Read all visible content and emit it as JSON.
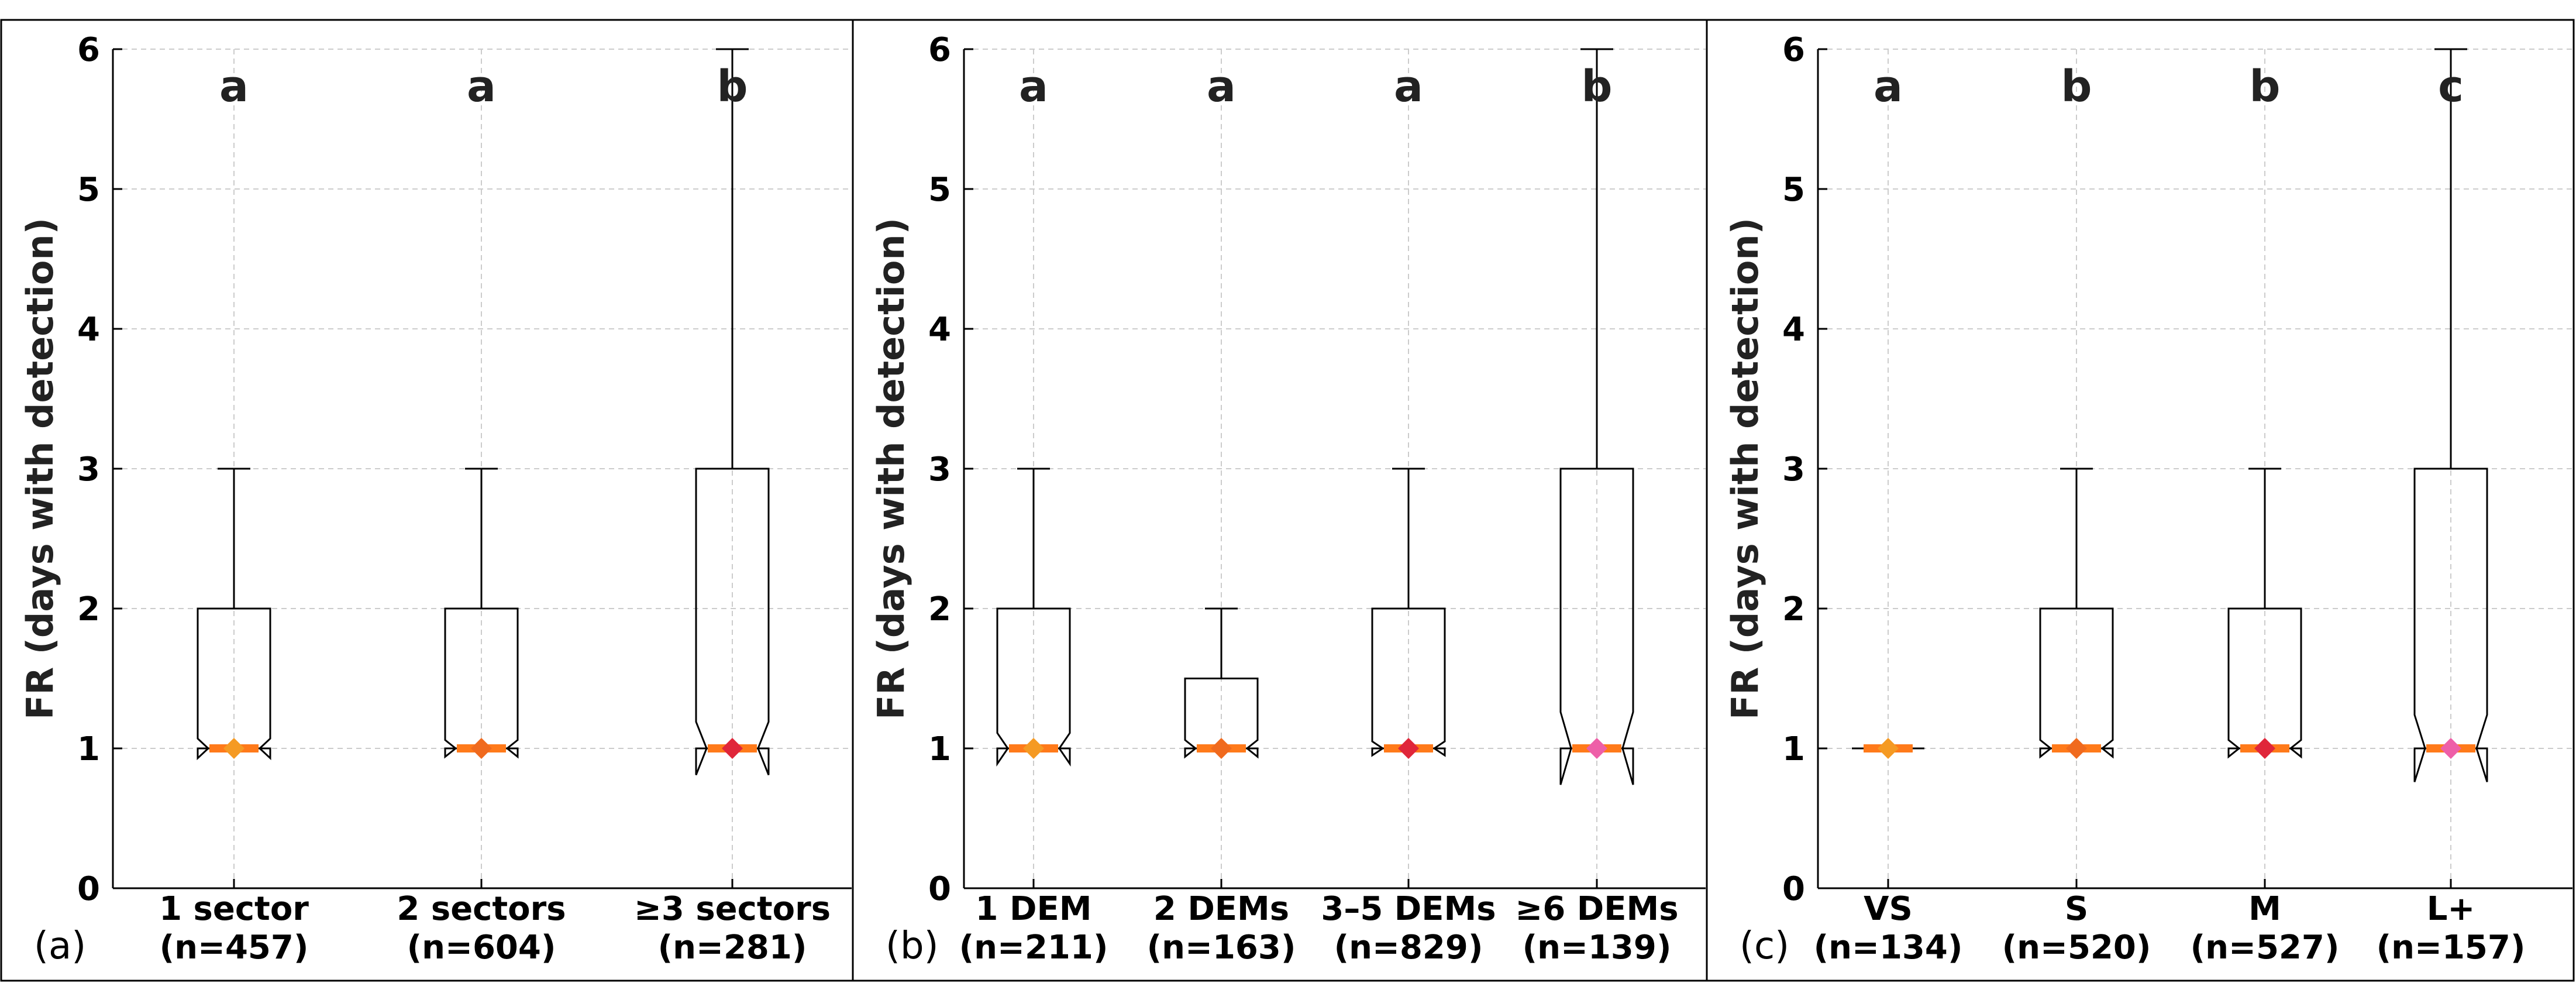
{
  "chart_data": [
    {
      "type": "boxplot",
      "panel_label": "(a)",
      "ylabel": "FR (days with detection)",
      "ylim": [
        0,
        6
      ],
      "yticks": [
        "0",
        "1",
        "2",
        "3",
        "4",
        "5",
        "6"
      ],
      "grid": true,
      "categories": [
        {
          "label": "1 sector",
          "n": "(n=457)",
          "q1": 1,
          "median": 1,
          "q3": 2,
          "whisker_low": 1,
          "whisker_high": 3,
          "notch_low": 0.93,
          "notch_high": 1.07,
          "mean": 1.0,
          "group": "a",
          "marker_color": "#f59a23"
        },
        {
          "label": "2 sectors",
          "n": "(n=604)",
          "q1": 1,
          "median": 1,
          "q3": 2,
          "whisker_low": 1,
          "whisker_high": 3,
          "notch_low": 0.94,
          "notch_high": 1.06,
          "mean": 1.0,
          "group": "a",
          "marker_color": "#f06a1e"
        },
        {
          "label": "≥3 sectors",
          "n": "(n=281)",
          "q1": 1,
          "median": 1,
          "q3": 3,
          "whisker_low": 1,
          "whisker_high": 6,
          "notch_low": 0.81,
          "notch_high": 1.19,
          "mean": 1.0,
          "group": "b",
          "marker_color": "#e0263a"
        }
      ]
    },
    {
      "type": "boxplot",
      "panel_label": "(b)",
      "ylabel": "FR (days with detection)",
      "ylim": [
        0,
        6
      ],
      "yticks": [
        "0",
        "1",
        "2",
        "3",
        "4",
        "5",
        "6"
      ],
      "grid": true,
      "categories": [
        {
          "label": "1 DEM",
          "n": "(n=211)",
          "q1": 1,
          "median": 1,
          "q3": 2,
          "whisker_low": 1,
          "whisker_high": 3,
          "notch_low": 0.89,
          "notch_high": 1.11,
          "mean": 1.0,
          "group": "a",
          "marker_color": "#f59a23"
        },
        {
          "label": "2 DEMs",
          "n": "(n=163)",
          "q1": 1,
          "median": 1,
          "q3": 1.5,
          "whisker_low": 1,
          "whisker_high": 2,
          "notch_low": 0.94,
          "notch_high": 1.06,
          "mean": 1.0,
          "group": "a",
          "marker_color": "#f06a1e"
        },
        {
          "label": "3–5 DEMs",
          "n": "(n=829)",
          "q1": 1,
          "median": 1,
          "q3": 2,
          "whisker_low": 1,
          "whisker_high": 3,
          "notch_low": 0.95,
          "notch_high": 1.05,
          "mean": 1.0,
          "group": "a",
          "marker_color": "#e0263a"
        },
        {
          "label": "≥6 DEMs",
          "n": "(n=139)",
          "q1": 1,
          "median": 1,
          "q3": 3,
          "whisker_low": 1,
          "whisker_high": 6,
          "notch_low": 0.74,
          "notch_high": 1.26,
          "mean": 1.0,
          "group": "b",
          "marker_color": "#ee5fa8"
        }
      ]
    },
    {
      "type": "boxplot",
      "panel_label": "(c)",
      "ylabel": "FR (days with detection)",
      "ylim": [
        0,
        6
      ],
      "yticks": [
        "0",
        "1",
        "2",
        "3",
        "4",
        "5",
        "6"
      ],
      "grid": true,
      "categories": [
        {
          "label": "VS",
          "n": "(n=134)",
          "q1": 1,
          "median": 1,
          "q3": 1,
          "whisker_low": 1,
          "whisker_high": 1,
          "notch_low": 1,
          "notch_high": 1,
          "mean": 1.0,
          "group": "a",
          "marker_color": "#f59a23"
        },
        {
          "label": "S",
          "n": "(n=520)",
          "q1": 1,
          "median": 1,
          "q3": 2,
          "whisker_low": 1,
          "whisker_high": 3,
          "notch_low": 0.94,
          "notch_high": 1.06,
          "mean": 1.0,
          "group": "b",
          "marker_color": "#f06a1e"
        },
        {
          "label": "M",
          "n": "(n=527)",
          "q1": 1,
          "median": 1,
          "q3": 2,
          "whisker_low": 1,
          "whisker_high": 3,
          "notch_low": 0.94,
          "notch_high": 1.06,
          "mean": 1.0,
          "group": "b",
          "marker_color": "#e0263a"
        },
        {
          "label": "L+",
          "n": "(n=157)",
          "q1": 1,
          "median": 1,
          "q3": 3,
          "whisker_low": 1,
          "whisker_high": 6,
          "notch_low": 0.76,
          "notch_high": 1.24,
          "mean": 1.0,
          "group": "c",
          "marker_color": "#ee5fa8"
        }
      ]
    }
  ],
  "style": {
    "median_color": "#ff7a1a",
    "box_color": "#000000",
    "grid_color": "#cccccc",
    "label_color": "#222222"
  }
}
